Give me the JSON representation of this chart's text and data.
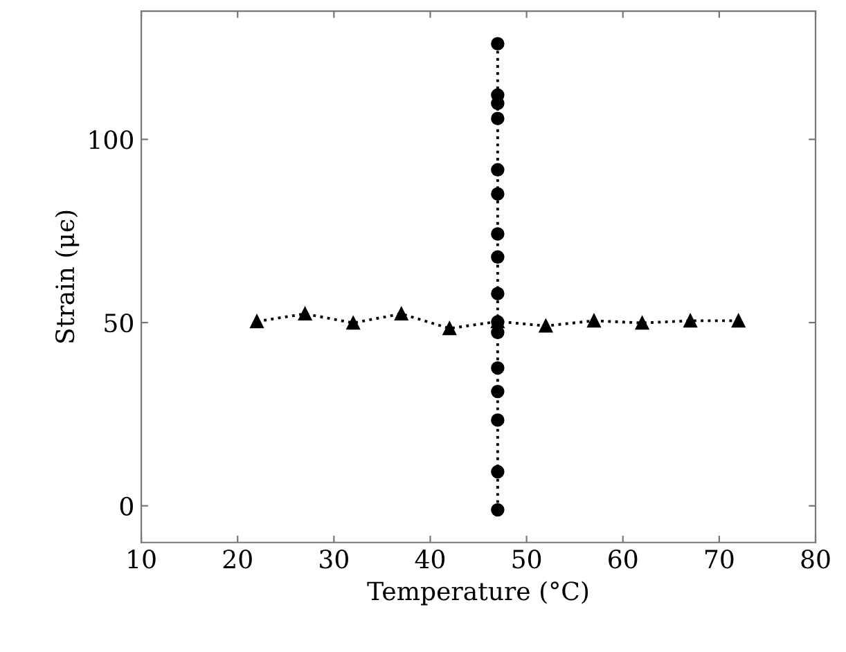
{
  "chart_data": {
    "type": "line",
    "xlabel": "Temperature (°C)",
    "ylabel": "Strain (μϵ)",
    "xlim": [
      10,
      80
    ],
    "xticks": [
      10,
      20,
      30,
      40,
      50,
      60,
      70,
      80
    ],
    "ylim": [
      -10,
      135
    ],
    "yticks": [
      0,
      50,
      100
    ],
    "grid": false,
    "line_style": "dotted",
    "series": [
      {
        "color": "#000000",
        "marker": "circle",
        "x": [
          47,
          47,
          47,
          47,
          47,
          47,
          47,
          47,
          47,
          47,
          47,
          47,
          47,
          47,
          47,
          47
        ],
        "values": [
          126.1,
          112.1,
          109.8,
          105.7,
          91.7,
          85.1,
          74.2,
          67.9,
          57.9,
          50.2,
          47.3,
          37.6,
          31.2,
          23.4,
          9.3,
          -1.1
        ]
      },
      {
        "color": "#000000",
        "marker": "triangle",
        "x": [
          22,
          27,
          32,
          37,
          42,
          47,
          52,
          57,
          62,
          67,
          72
        ],
        "values": [
          50.3,
          52.4,
          49.9,
          52.4,
          48.4,
          50.3,
          49.1,
          50.5,
          49.9,
          50.5,
          50.5
        ]
      }
    ]
  }
}
